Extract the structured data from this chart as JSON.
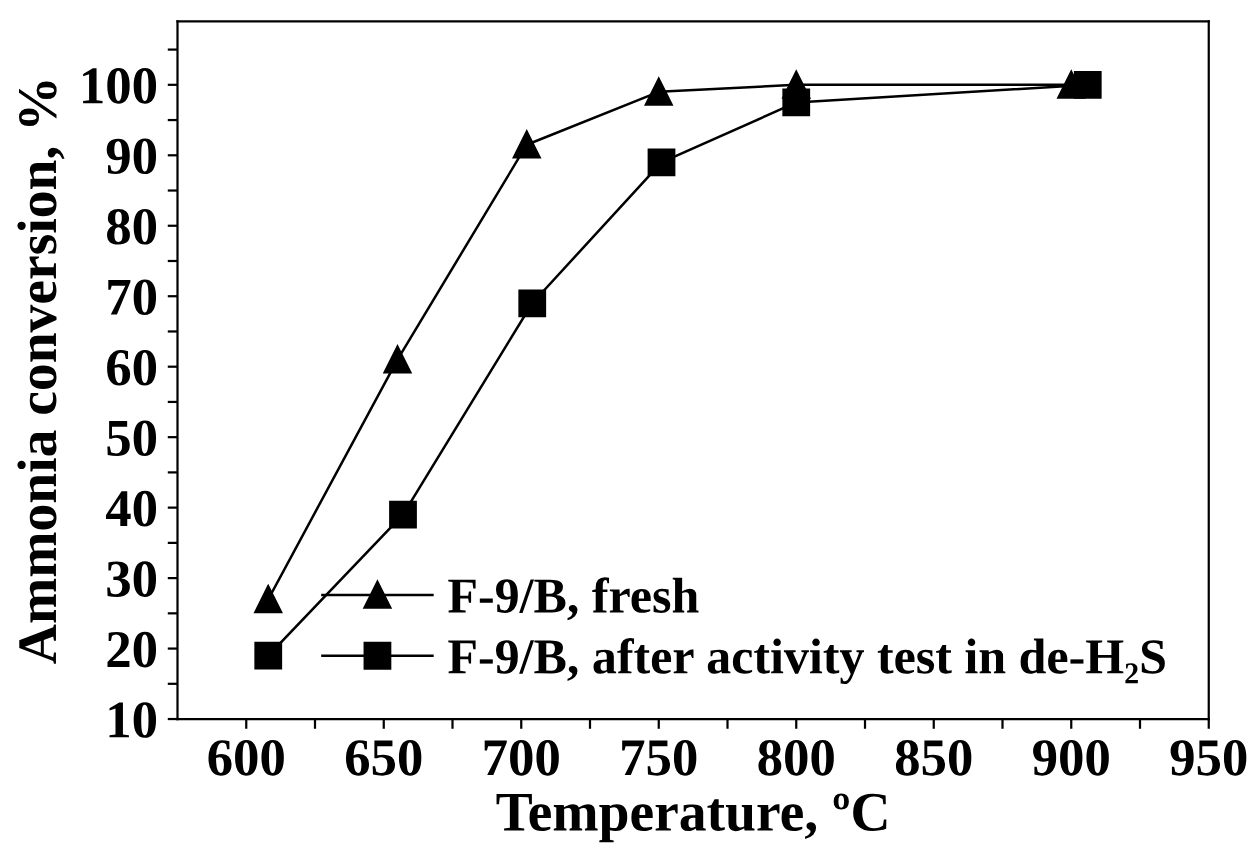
{
  "chart_data": {
    "type": "line",
    "xlabel": "Temperature, ºC",
    "ylabel": "Ammonia conversion, %",
    "xlim": [
      575,
      950
    ],
    "ylim": [
      10,
      109
    ],
    "xticks": [
      600,
      {
        "value": 625,
        "label": null
      },
      650,
      {
        "value": 675,
        "label": null
      },
      700,
      {
        "value": 725,
        "label": null
      },
      750,
      {
        "value": 775,
        "label": null
      },
      800,
      {
        "value": 825,
        "label": null
      },
      850,
      {
        "value": 875,
        "label": null
      },
      900,
      {
        "value": 925,
        "label": null
      },
      950
    ],
    "yticks": [
      10,
      {
        "value": 15,
        "label": null
      },
      20,
      {
        "value": 25,
        "label": null
      },
      30,
      {
        "value": 35,
        "label": null
      },
      40,
      {
        "value": 45,
        "label": null
      },
      50,
      {
        "value": 55,
        "label": null
      },
      60,
      {
        "value": 65,
        "label": null
      },
      70,
      {
        "value": 75,
        "label": null
      },
      80,
      {
        "value": 85,
        "label": null
      },
      90,
      {
        "value": 95,
        "label": null
      },
      100,
      {
        "value": 105,
        "label": null
      }
    ],
    "grid": false,
    "legend": "bottom",
    "line_style": "solid",
    "series": [
      {
        "name": "F-9/B, fresh",
        "color": "#000000",
        "marker": "triangle",
        "x": [
          608,
          655,
          702,
          750,
          800,
          900
        ],
        "values": [
          27,
          61,
          91.5,
          99,
          100,
          100
        ]
      },
      {
        "name": "F-9/B, after activity test in de-H₂S",
        "color": "#000000",
        "marker": "square",
        "x": [
          608,
          657,
          704,
          751,
          800,
          906
        ],
        "values": [
          19,
          39,
          69,
          89,
          97.5,
          100
        ]
      }
    ]
  }
}
